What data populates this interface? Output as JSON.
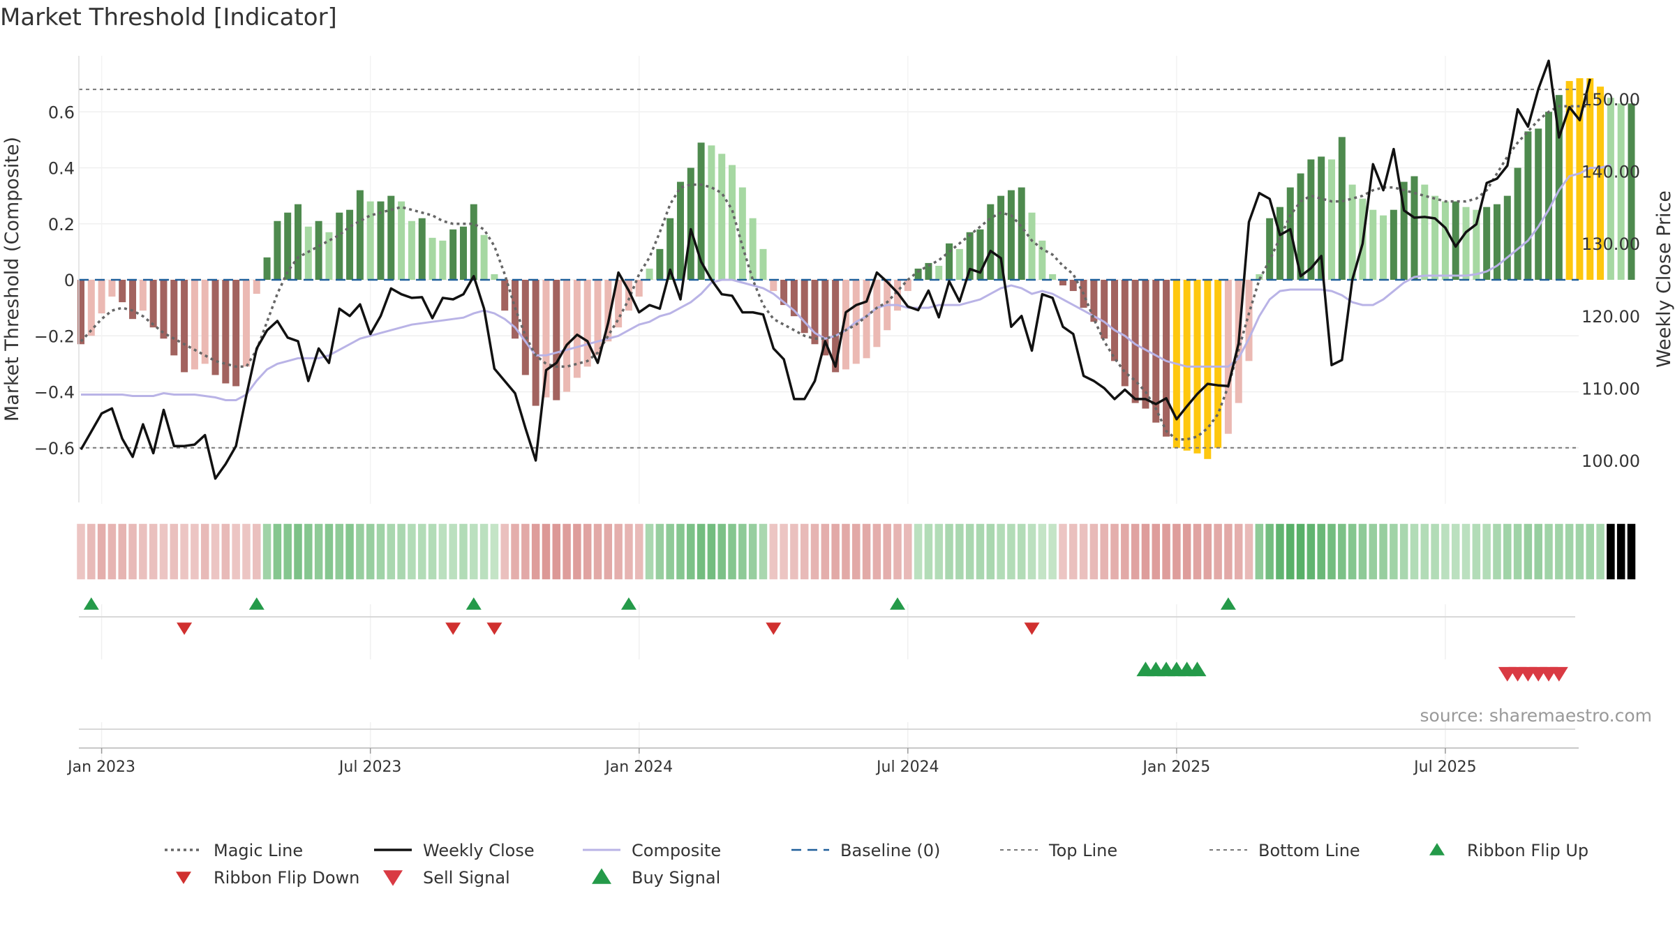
{
  "title": "Market Threshold [Indicator]",
  "source": "source: sharemaestro.com",
  "colors": {
    "green_dark": "#4e8a4e",
    "green_light": "#a6d8a2",
    "red_dark": "#a2635f",
    "red_light": "#ebb9b3",
    "gold": "#fec70e",
    "close": "#111111",
    "composite": "#b9b3e6",
    "magic": "#666666",
    "baseline": "#1f5f9a",
    "buy": "#249a49",
    "sell": "#d93a43"
  },
  "chart_data": {
    "type": "bar+line",
    "title": "Market Threshold [Indicator]",
    "ylabel_left": "Market Threshold (Composite)",
    "ylabel_right": "Weekly Close Price",
    "ylim_left": [
      -0.8,
      0.8
    ],
    "ylim_right": [
      94,
      156
    ],
    "yticks_left": [
      "0.6",
      "0.4",
      "0.2",
      "0",
      "−0.2",
      "−0.4",
      "−0.6"
    ],
    "yticks_left_values": [
      0.6,
      0.4,
      0.2,
      0,
      -0.2,
      -0.4,
      -0.6
    ],
    "yticks_right": [
      "150.00",
      "140.00",
      "130.00",
      "120.00",
      "110.00",
      "100.00"
    ],
    "yticks_right_values": [
      150,
      140,
      130,
      120,
      110,
      100
    ],
    "xticks": [
      "Jan 2023",
      "Jul 2023",
      "Jan 2024",
      "Jul 2024",
      "Jan 2025",
      "Jul 2025"
    ],
    "xticks_week_index": [
      2,
      28,
      54,
      80,
      106,
      132
    ],
    "top_line": 0.68,
    "bottom_line": -0.6,
    "bars": [
      -0.23,
      -0.2,
      -0.12,
      -0.06,
      -0.08,
      -0.14,
      -0.11,
      -0.17,
      -0.21,
      -0.27,
      -0.33,
      -0.32,
      -0.3,
      -0.34,
      -0.37,
      -0.38,
      -0.31,
      -0.05,
      0.08,
      0.21,
      0.24,
      0.27,
      0.19,
      0.21,
      0.17,
      0.24,
      0.25,
      0.32,
      0.28,
      0.28,
      0.3,
      0.28,
      0.21,
      0.22,
      0.15,
      0.14,
      0.18,
      0.19,
      0.27,
      0.16,
      0.02,
      -0.11,
      -0.21,
      -0.34,
      -0.45,
      -0.42,
      -0.43,
      -0.4,
      -0.35,
      -0.31,
      -0.27,
      -0.22,
      -0.17,
      -0.11,
      -0.06,
      0.04,
      0.11,
      0.22,
      0.35,
      0.4,
      0.49,
      0.48,
      0.45,
      0.41,
      0.33,
      0.22,
      0.11,
      -0.04,
      -0.09,
      -0.13,
      -0.19,
      -0.23,
      -0.27,
      -0.33,
      -0.32,
      -0.3,
      -0.28,
      -0.24,
      -0.18,
      -0.11,
      -0.04,
      0.04,
      0.06,
      0.05,
      0.13,
      0.11,
      0.17,
      0.18,
      0.27,
      0.3,
      0.32,
      0.33,
      0.24,
      0.14,
      0.02,
      -0.02,
      -0.04,
      -0.1,
      -0.15,
      -0.21,
      -0.29,
      -0.38,
      -0.44,
      -0.46,
      -0.51,
      -0.56,
      -0.6,
      -0.61,
      -0.62,
      -0.64,
      -0.6,
      -0.55,
      -0.44,
      -0.29,
      0.02,
      0.22,
      0.26,
      0.33,
      0.38,
      0.43,
      0.44,
      0.43,
      0.51,
      0.34,
      0.29,
      0.25,
      0.23,
      0.25,
      0.35,
      0.37,
      0.34,
      0.3,
      0.28,
      0.28,
      0.26,
      0.25,
      0.26,
      0.27,
      0.3,
      0.4,
      0.53,
      0.54,
      0.6,
      0.66,
      0.71,
      0.72,
      0.72,
      0.69,
      0.65,
      0.63,
      0.63
    ],
    "weekly_close": [
      101.5,
      104,
      106.5,
      107.2,
      103,
      100.5,
      105,
      101,
      107,
      102,
      102,
      102.2,
      103.5,
      97.5,
      99.5,
      102,
      109,
      115.5,
      118,
      119.3,
      117,
      116.5,
      111,
      115.5,
      113.5,
      121,
      120,
      121.6,
      117.5,
      120,
      123.8,
      123,
      122.5,
      122.6,
      119.7,
      122.5,
      122.3,
      123,
      125.5,
      121,
      112.7,
      111,
      109.3,
      104.5,
      100,
      112.5,
      113.5,
      116,
      117.4,
      116.5,
      113.5,
      119,
      126,
      123.5,
      120.5,
      121.5,
      121,
      126.4,
      122.3,
      132,
      127.5,
      125,
      123,
      122.8,
      120.5,
      120.5,
      120.2,
      115.5,
      114,
      108.5,
      108.5,
      111,
      116.5,
      113,
      120.5,
      121.5,
      122,
      126,
      124.7,
      123.2,
      121.3,
      120.8,
      123.5,
      119.8,
      124.8,
      122,
      126.5,
      126,
      129,
      128,
      118.5,
      120,
      115.2,
      123,
      122.5,
      118.5,
      117.5,
      111.7,
      111,
      110,
      108.5,
      109.8,
      108.5,
      108.5,
      107.8,
      108.6,
      105.7,
      107.5,
      109.2,
      110.6,
      110.4,
      110.3,
      116.2,
      133,
      137,
      136.2,
      131.2,
      132,
      125.5,
      126.6,
      128.3,
      113.2,
      113.9,
      125,
      130,
      141,
      137.4,
      143.1,
      134.6,
      133.6,
      133.7,
      133.5,
      132.2,
      129.6,
      131.6,
      132.7,
      138.4,
      139,
      140.8,
      148.6,
      146.2,
      151.4,
      155.3,
      144.7,
      148.9,
      147.1,
      152.8
    ],
    "composite": [
      -0.41,
      -0.41,
      -0.41,
      -0.41,
      -0.41,
      -0.415,
      -0.415,
      -0.415,
      -0.405,
      -0.41,
      -0.41,
      -0.41,
      -0.415,
      -0.42,
      -0.43,
      -0.43,
      -0.41,
      -0.36,
      -0.32,
      -0.3,
      -0.29,
      -0.28,
      -0.28,
      -0.28,
      -0.27,
      -0.25,
      -0.23,
      -0.21,
      -0.2,
      -0.19,
      -0.18,
      -0.17,
      -0.16,
      -0.155,
      -0.15,
      -0.145,
      -0.14,
      -0.135,
      -0.12,
      -0.11,
      -0.12,
      -0.14,
      -0.17,
      -0.22,
      -0.27,
      -0.27,
      -0.26,
      -0.25,
      -0.24,
      -0.23,
      -0.22,
      -0.21,
      -0.2,
      -0.18,
      -0.16,
      -0.15,
      -0.13,
      -0.12,
      -0.1,
      -0.08,
      -0.05,
      -0.01,
      0,
      0,
      -0.01,
      -0.02,
      -0.03,
      -0.05,
      -0.08,
      -0.11,
      -0.15,
      -0.19,
      -0.21,
      -0.2,
      -0.18,
      -0.15,
      -0.13,
      -0.1,
      -0.09,
      -0.09,
      -0.1,
      -0.1,
      -0.1,
      -0.09,
      -0.09,
      -0.09,
      -0.08,
      -0.07,
      -0.05,
      -0.03,
      -0.02,
      -0.03,
      -0.05,
      -0.04,
      -0.05,
      -0.07,
      -0.09,
      -0.11,
      -0.13,
      -0.15,
      -0.18,
      -0.2,
      -0.23,
      -0.25,
      -0.27,
      -0.29,
      -0.3,
      -0.31,
      -0.31,
      -0.31,
      -0.31,
      -0.31,
      -0.28,
      -0.21,
      -0.13,
      -0.07,
      -0.04,
      -0.035,
      -0.035,
      -0.035,
      -0.035,
      -0.04,
      -0.055,
      -0.08,
      -0.09,
      -0.09,
      -0.07,
      -0.04,
      -0.01,
      0.01,
      0.015,
      0.015,
      0.015,
      0.015,
      0.015,
      0.02,
      0.03,
      0.05,
      0.08,
      0.11,
      0.14,
      0.19,
      0.25,
      0.32,
      0.37,
      0.38,
      0.4,
      0.4,
      0.41
    ],
    "magic_line": [
      -0.22,
      -0.18,
      -0.14,
      -0.11,
      -0.1,
      -0.11,
      -0.13,
      -0.16,
      -0.19,
      -0.21,
      -0.23,
      -0.25,
      -0.27,
      -0.29,
      -0.3,
      -0.31,
      -0.31,
      -0.25,
      -0.15,
      -0.05,
      0.03,
      0.08,
      0.1,
      0.12,
      0.14,
      0.16,
      0.19,
      0.21,
      0.23,
      0.24,
      0.25,
      0.26,
      0.25,
      0.24,
      0.23,
      0.21,
      0.2,
      0.2,
      0.2,
      0.18,
      0.12,
      0.02,
      -0.1,
      -0.2,
      -0.27,
      -0.3,
      -0.31,
      -0.31,
      -0.3,
      -0.29,
      -0.26,
      -0.2,
      -0.14,
      -0.07,
      0.02,
      0.08,
      0.17,
      0.27,
      0.33,
      0.34,
      0.34,
      0.33,
      0.31,
      0.25,
      0.12,
      0,
      -0.09,
      -0.14,
      -0.16,
      -0.18,
      -0.2,
      -0.21,
      -0.21,
      -0.2,
      -0.18,
      -0.16,
      -0.13,
      -0.1,
      -0.08,
      -0.04,
      0,
      0.03,
      0.05,
      0.07,
      0.1,
      0.13,
      0.16,
      0.19,
      0.22,
      0.24,
      0.23,
      0.19,
      0.14,
      0.11,
      0.09,
      0.05,
      0.02,
      -0.05,
      -0.14,
      -0.22,
      -0.28,
      -0.33,
      -0.36,
      -0.4,
      -0.46,
      -0.54,
      -0.57,
      -0.57,
      -0.56,
      -0.53,
      -0.48,
      -0.38,
      -0.25,
      -0.12,
      0,
      0.07,
      0.15,
      0.23,
      0.28,
      0.3,
      0.29,
      0.28,
      0.28,
      0.29,
      0.3,
      0.32,
      0.33,
      0.33,
      0.32,
      0.31,
      0.3,
      0.29,
      0.28,
      0.28,
      0.28,
      0.29,
      0.32,
      0.38,
      0.44,
      0.49,
      0.53,
      0.57,
      0.6,
      0.62,
      0.62,
      0.62,
      0.62
    ],
    "ribbon_intensity": [
      0.2,
      0.3,
      0.4,
      0.35,
      0.35,
      0.3,
      0.25,
      0.25,
      0.2,
      0.25,
      0.2,
      0.2,
      0.3,
      0.2,
      0.3,
      0.2,
      0.2,
      0.25,
      0.4,
      0.55,
      0.55,
      0.6,
      0.55,
      0.5,
      0.55,
      0.5,
      0.55,
      0.45,
      0.45,
      0.4,
      0.35,
      0.35,
      0.3,
      0.3,
      0.3,
      0.25,
      0.25,
      0.3,
      0.25,
      0.25,
      0.2,
      0.25,
      0.4,
      0.45,
      0.55,
      0.6,
      0.6,
      0.55,
      0.55,
      0.5,
      0.45,
      0.45,
      0.4,
      0.35,
      0.3,
      0.35,
      0.45,
      0.5,
      0.55,
      0.6,
      0.65,
      0.65,
      0.6,
      0.55,
      0.5,
      0.45,
      0.35,
      0.2,
      0.2,
      0.25,
      0.3,
      0.35,
      0.4,
      0.45,
      0.45,
      0.45,
      0.45,
      0.4,
      0.4,
      0.35,
      0.3,
      0.25,
      0.3,
      0.3,
      0.35,
      0.35,
      0.35,
      0.35,
      0.35,
      0.3,
      0.3,
      0.3,
      0.25,
      0.2,
      0.2,
      0.2,
      0.25,
      0.25,
      0.3,
      0.35,
      0.4,
      0.45,
      0.5,
      0.55,
      0.55,
      0.55,
      0.55,
      0.55,
      0.5,
      0.5,
      0.45,
      0.45,
      0.4,
      0.3,
      0.5,
      0.65,
      0.75,
      0.8,
      0.8,
      0.75,
      0.7,
      0.65,
      0.6,
      0.55,
      0.5,
      0.45,
      0.45,
      0.4,
      0.35,
      0.3,
      0.3,
      0.3,
      0.25,
      0.25,
      0.25,
      0.3,
      0.3,
      0.35,
      0.4,
      0.4,
      0.45,
      0.45,
      0.4,
      0.4,
      0.4,
      0.4,
      0.4,
      0.35
    ],
    "ribbon_flip_up_weeks": [
      1,
      17,
      38,
      53,
      79,
      111
    ],
    "ribbon_flip_down_weeks": [
      10,
      36,
      40,
      67,
      92
    ],
    "buy_signal_weeks": [
      103,
      104,
      105,
      106,
      107,
      108
    ],
    "sell_signal_weeks": [
      138,
      139,
      140,
      141,
      142,
      143
    ],
    "legend": [
      {
        "key": "magic",
        "label": "Magic Line"
      },
      {
        "key": "close",
        "label": "Weekly Close"
      },
      {
        "key": "composite",
        "label": "Composite"
      },
      {
        "key": "baseline",
        "label": "Baseline (0)"
      },
      {
        "key": "top",
        "label": "Top Line"
      },
      {
        "key": "bottom",
        "label": "Bottom Line"
      },
      {
        "key": "flipup",
        "label": "Ribbon Flip Up"
      },
      {
        "key": "flipdown",
        "label": "Ribbon Flip Down"
      },
      {
        "key": "sell",
        "label": "Sell Signal"
      },
      {
        "key": "buy",
        "label": "Buy Signal"
      }
    ]
  }
}
